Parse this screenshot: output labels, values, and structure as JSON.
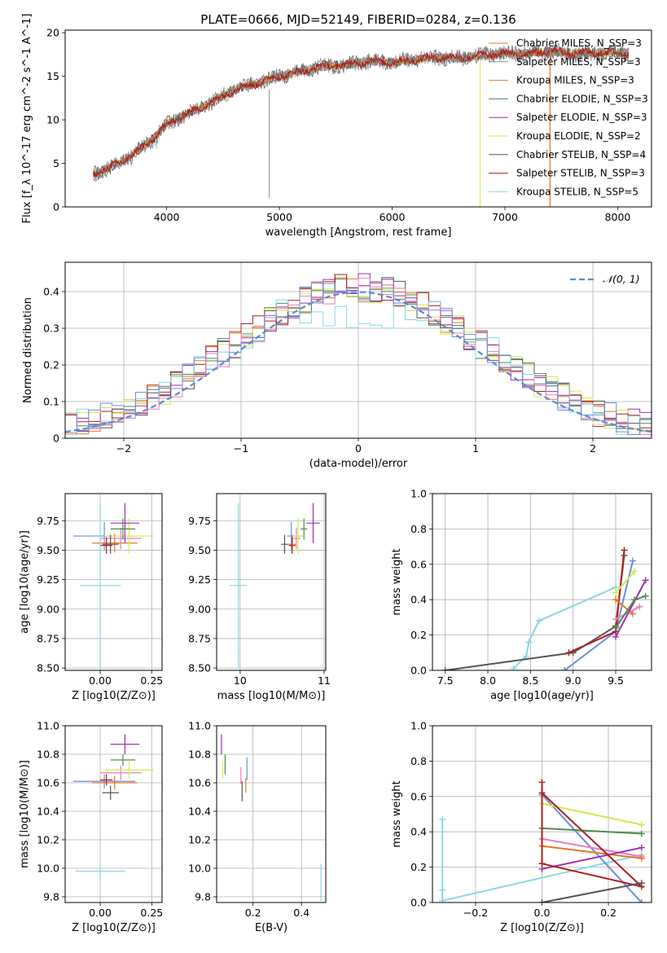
{
  "figure": {
    "title": "PLATE=0666, MJD=52149, FIBERID=0284, z=0.136"
  },
  "model_colors": [
    "#e8742a",
    "#4f8a4f",
    "#9b2fae",
    "#d4ea4a",
    "#555555",
    "#b01e1e",
    "#88d8e0",
    "#e87fbf",
    "#6a8fd8"
  ],
  "chart_data": [
    {
      "id": "spectrum",
      "type": "line",
      "xlabel": "wavelength [Angstrom, rest frame]",
      "ylabel": "Flux [f_λ 10^-17 erg cm^-2 s^-1 A^-1]",
      "xlim": [
        3100,
        8300
      ],
      "ylim": [
        0,
        20.3
      ],
      "xticks": [
        4000,
        5000,
        6000,
        7000,
        8000
      ],
      "yticks": [
        0,
        5,
        10,
        15,
        20
      ],
      "grid": false,
      "legend": "top-right",
      "observed_anchor_wavelengths": [
        3350,
        3500,
        3700,
        3900,
        4000,
        4200,
        4400,
        4600,
        4800,
        5000,
        5200,
        5400,
        5600,
        5800,
        6000,
        6200,
        6400,
        6600,
        6800,
        7000,
        7200,
        7400,
        7600,
        7800,
        8050
      ],
      "observed_anchor_flux": [
        3.8,
        4.5,
        6.0,
        8.0,
        9.5,
        10.8,
        12.0,
        13.5,
        14.2,
        15.0,
        15.6,
        16.2,
        16.3,
        16.8,
        16.6,
        16.9,
        17.2,
        17.1,
        17.4,
        17.6,
        17.6,
        17.9,
        17.6,
        17.7,
        17.7
      ],
      "series": [
        {
          "name": "Chabrier MILES, N_SSP=3",
          "color": "#e8742a"
        },
        {
          "name": "Salpeter MILES, N_SSP=3",
          "color": "#8a8a8a"
        },
        {
          "name": "Kroupa MILES, N_SSP=3",
          "color": "#e8742a"
        },
        {
          "name": "Chabrier ELODIE, N_SSP=3",
          "color": "#4f8a4f"
        },
        {
          "name": "Salpeter ELODIE, N_SSP=3",
          "color": "#9b2fae"
        },
        {
          "name": "Kroupa ELODIE, N_SSP=2",
          "color": "#d4ea4a"
        },
        {
          "name": "Chabrier STELIB, N_SSP=4",
          "color": "#555555"
        },
        {
          "name": "Salpeter STELIB, N_SSP=3",
          "color": "#b01e1e"
        },
        {
          "name": "Kroupa STELIB, N_SSP=5",
          "color": "#88d8e0"
        }
      ]
    },
    {
      "id": "residuals",
      "type": "line",
      "xlabel": "(data-model)/error",
      "ylabel": "Normed distribution",
      "xlim": [
        -2.5,
        2.5
      ],
      "ylim": [
        0,
        0.48
      ],
      "xticks": [
        -2,
        -1,
        0,
        1,
        2
      ],
      "yticks": [
        0.0,
        0.1,
        0.2,
        0.3,
        0.4
      ],
      "grid": true,
      "legend": "top-right",
      "reference_curve": {
        "name": "𝒩(0, 1)",
        "color": "#5b8ad6",
        "style": "dashed"
      },
      "bin_width": 0.1
    },
    {
      "id": "age_vs_Z",
      "type": "scatter",
      "xlabel": "Z [log10(Z/Z⊙)]",
      "ylabel": "age [log10(age/yr)]",
      "xlim": [
        -0.17,
        0.3
      ],
      "ylim": [
        8.48,
        9.98
      ],
      "xticks": [
        0.0,
        0.25
      ],
      "xticklabels": [
        "0.00",
        "0.25"
      ],
      "yticks": [
        8.5,
        8.75,
        9.0,
        9.25,
        9.5,
        9.75
      ],
      "yticklabels": [
        "8.50",
        "8.75",
        "9.00",
        "9.25",
        "9.50",
        "9.75"
      ],
      "grid": true,
      "points": [
        {
          "x": 0.02,
          "y": 9.62,
          "xerr": 0.15,
          "yerr": 0.12,
          "color": "#6a8fd8"
        },
        {
          "x": 0.07,
          "y": 9.56,
          "xerr": 0.11,
          "yerr": 0.08,
          "color": "#e8742a"
        },
        {
          "x": 0.1,
          "y": 9.6,
          "xerr": 0.1,
          "yerr": 0.09,
          "color": "#e87fbf"
        },
        {
          "x": 0.14,
          "y": 9.62,
          "xerr": 0.12,
          "yerr": 0.15,
          "color": "#d4ea4a"
        },
        {
          "x": 0.12,
          "y": 9.73,
          "xerr": 0.07,
          "yerr": 0.17,
          "color": "#9b2fae"
        },
        {
          "x": 0.11,
          "y": 9.68,
          "xerr": 0.06,
          "yerr": 0.09,
          "color": "#4f8a4f"
        },
        {
          "x": 0.05,
          "y": 9.55,
          "xerr": 0.04,
          "yerr": 0.08,
          "color": "#555555"
        },
        {
          "x": 0.03,
          "y": 9.54,
          "xerr": 0.03,
          "yerr": 0.07,
          "color": "#b01e1e"
        },
        {
          "x": 0.0,
          "y": 9.2,
          "xerr": 0.1,
          "yerr": 0.7,
          "color": "#88d8e0"
        }
      ]
    },
    {
      "id": "age_vs_mass",
      "type": "scatter",
      "xlabel": "mass [log10(M/M⊙)]",
      "ylabel": "",
      "xlim": [
        9.72,
        11.02
      ],
      "ylim": [
        8.48,
        9.98
      ],
      "xticks": [
        10,
        11
      ],
      "yticks": [
        8.5,
        8.75,
        9.0,
        9.25,
        9.5,
        9.75
      ],
      "yticklabels": [
        "8.50",
        "8.75",
        "9.00",
        "9.25",
        "9.50",
        "9.75"
      ],
      "grid": true,
      "points": [
        {
          "x": 10.61,
          "y": 9.62,
          "xerr": 0.05,
          "yerr": 0.12,
          "color": "#6a8fd8"
        },
        {
          "x": 10.62,
          "y": 9.55,
          "xerr": 0.05,
          "yerr": 0.08,
          "color": "#e8742a"
        },
        {
          "x": 10.67,
          "y": 9.6,
          "xerr": 0.05,
          "yerr": 0.09,
          "color": "#e87fbf"
        },
        {
          "x": 10.69,
          "y": 9.62,
          "xerr": 0.06,
          "yerr": 0.15,
          "color": "#d4ea4a"
        },
        {
          "x": 10.87,
          "y": 9.73,
          "xerr": 0.08,
          "yerr": 0.17,
          "color": "#9b2fae"
        },
        {
          "x": 10.76,
          "y": 9.68,
          "xerr": 0.04,
          "yerr": 0.09,
          "color": "#4f8a4f"
        },
        {
          "x": 10.53,
          "y": 9.55,
          "xerr": 0.04,
          "yerr": 0.08,
          "color": "#555555"
        },
        {
          "x": 10.62,
          "y": 9.54,
          "xerr": 0.04,
          "yerr": 0.07,
          "color": "#b01e1e"
        },
        {
          "x": 9.98,
          "y": 9.2,
          "xerr": 0.1,
          "yerr": 0.7,
          "color": "#88d8e0"
        }
      ]
    },
    {
      "id": "weight_vs_age",
      "type": "line",
      "xlabel": "age [log10(age/yr)]",
      "ylabel": "mass weight",
      "xlim": [
        7.35,
        9.92
      ],
      "ylim": [
        0,
        1
      ],
      "xticks": [
        7.5,
        8.0,
        8.5,
        9.0,
        9.5
      ],
      "xticklabels": [
        "7.5",
        "8.0",
        "8.5",
        "9.0",
        "9.5"
      ],
      "yticks": [
        0,
        0.2,
        0.4,
        0.6,
        0.8,
        1.0
      ],
      "yticklabels": [
        "0.0",
        "0.2",
        "0.4",
        "0.6",
        "0.8",
        "1.0"
      ],
      "grid": true,
      "series": [
        {
          "color": "#88d8e0",
          "x": [
            8.3,
            8.45,
            8.48,
            8.6,
            9.5
          ],
          "y": [
            0.01,
            0.08,
            0.16,
            0.28,
            0.47
          ]
        },
        {
          "color": "#555555",
          "x": [
            7.5,
            9.0,
            9.5,
            9.6
          ],
          "y": [
            0.0,
            0.1,
            0.25,
            0.65
          ]
        },
        {
          "color": "#6a8fd8",
          "x": [
            8.9,
            9.5,
            9.7
          ],
          "y": [
            0.0,
            0.22,
            0.62
          ]
        },
        {
          "color": "#b01e1e",
          "x": [
            8.95,
            9.5,
            9.6
          ],
          "y": [
            0.1,
            0.22,
            0.68
          ]
        },
        {
          "color": "#e8742a",
          "x": [
            9.5,
            9.7
          ],
          "y": [
            0.4,
            0.32
          ]
        },
        {
          "color": "#d4ea4a",
          "x": [
            9.5,
            9.72
          ],
          "y": [
            0.44,
            0.56
          ]
        },
        {
          "color": "#e87fbf",
          "x": [
            9.5,
            9.78
          ],
          "y": [
            0.29,
            0.36
          ]
        },
        {
          "color": "#9b2fae",
          "x": [
            9.5,
            9.85
          ],
          "y": [
            0.19,
            0.51
          ]
        },
        {
          "color": "#4f8a4f",
          "x": [
            9.5,
            9.72,
            9.85
          ],
          "y": [
            0.24,
            0.4,
            0.42
          ]
        }
      ]
    },
    {
      "id": "mass_vs_Z",
      "type": "scatter",
      "xlabel": "Z [log10(Z/Z⊙)]",
      "ylabel": "mass [log10(M/M⊙)]",
      "xlim": [
        -0.17,
        0.3
      ],
      "ylim": [
        9.76,
        11.0
      ],
      "xticks": [
        0.0,
        0.25
      ],
      "xticklabels": [
        "0.00",
        "0.25"
      ],
      "yticks": [
        9.8,
        10.0,
        10.2,
        10.4,
        10.6,
        10.8,
        11.0
      ],
      "yticklabels": [
        "9.8",
        "10.0",
        "10.2",
        "10.4",
        "10.6",
        "10.8",
        "11.0"
      ],
      "grid": true,
      "points": [
        {
          "x": 0.02,
          "y": 10.61,
          "xerr": 0.15,
          "yerr": 0.05,
          "color": "#6a8fd8"
        },
        {
          "x": 0.07,
          "y": 10.6,
          "xerr": 0.11,
          "yerr": 0.05,
          "color": "#e8742a"
        },
        {
          "x": 0.1,
          "y": 10.67,
          "xerr": 0.1,
          "yerr": 0.05,
          "color": "#e87fbf"
        },
        {
          "x": 0.14,
          "y": 10.69,
          "xerr": 0.12,
          "yerr": 0.06,
          "color": "#d4ea4a"
        },
        {
          "x": 0.12,
          "y": 10.87,
          "xerr": 0.07,
          "yerr": 0.07,
          "color": "#9b2fae"
        },
        {
          "x": 0.11,
          "y": 10.76,
          "xerr": 0.06,
          "yerr": 0.04,
          "color": "#4f8a4f"
        },
        {
          "x": 0.05,
          "y": 10.53,
          "xerr": 0.04,
          "yerr": 0.05,
          "color": "#555555"
        },
        {
          "x": 0.03,
          "y": 10.62,
          "xerr": 0.03,
          "yerr": 0.04,
          "color": "#b01e1e"
        },
        {
          "x": 0.0,
          "y": 9.98,
          "xerr": 0.12,
          "yerr": 0.06,
          "color": "#88d8e0"
        }
      ]
    },
    {
      "id": "mass_vs_ebv",
      "type": "scatter",
      "xlabel": "E(B-V)",
      "ylabel": "",
      "xlim": [
        0.05,
        0.5
      ],
      "ylim": [
        9.76,
        11.0
      ],
      "xticks": [
        0.2,
        0.4
      ],
      "xticklabels": [
        "0.2",
        "0.4"
      ],
      "yticks": [
        9.8,
        10.0,
        10.2,
        10.4,
        10.6,
        10.8,
        11.0
      ],
      "yticklabels": [
        "9.8",
        "10.0",
        "10.2",
        "10.4",
        "10.6",
        "10.8",
        "11.0"
      ],
      "grid": true,
      "points": [
        {
          "x": 0.07,
          "y": 10.87,
          "xerr": 0,
          "yerr": 0.07,
          "color": "#9b2fae"
        },
        {
          "x": 0.085,
          "y": 10.73,
          "xerr": 0,
          "yerr": 0.07,
          "color": "#4f8a4f"
        },
        {
          "x": 0.075,
          "y": 10.69,
          "xerr": 0,
          "yerr": 0.06,
          "color": "#d4ea4a"
        },
        {
          "x": 0.15,
          "y": 10.65,
          "xerr": 0,
          "yerr": 0.06,
          "color": "#e87fbf"
        },
        {
          "x": 0.155,
          "y": 10.54,
          "xerr": 0,
          "yerr": 0.07,
          "color": "#555555"
        },
        {
          "x": 0.17,
          "y": 10.58,
          "xerr": 0,
          "yerr": 0.05,
          "color": "#e8742a"
        },
        {
          "x": 0.175,
          "y": 10.7,
          "xerr": 0,
          "yerr": 0.08,
          "color": "#6a8fd8"
        },
        {
          "x": 0.48,
          "y": 9.9,
          "xerr": 0,
          "yerr": 0.13,
          "color": "#88d8e0"
        }
      ]
    },
    {
      "id": "weight_vs_Z",
      "type": "line",
      "xlabel": "Z [log10(Z/Z⊙)]",
      "ylabel": "mass weight",
      "xlim": [
        -0.33,
        0.33
      ],
      "ylim": [
        0,
        1
      ],
      "xticks": [
        -0.2,
        0.0,
        0.2
      ],
      "xticklabels": [
        "−0.2",
        "0.0",
        "0.2"
      ],
      "yticks": [
        0,
        0.2,
        0.4,
        0.6,
        0.8,
        1.0
      ],
      "yticklabels": [
        "0.0",
        "0.2",
        "0.4",
        "0.6",
        "0.8",
        "1.0"
      ],
      "grid": true,
      "series": [
        {
          "color": "#88d8e0",
          "x": [
            -0.3,
            -0.3,
            -0.3,
            0.3
          ],
          "y": [
            0.47,
            0.07,
            0.01,
            0.27
          ]
        },
        {
          "color": "#6a8fd8",
          "x": [
            0.0,
            0.3
          ],
          "y": [
            0.61,
            0.0
          ]
        },
        {
          "color": "#d4ea4a",
          "x": [
            0.0,
            0.3
          ],
          "y": [
            0.56,
            0.44
          ]
        },
        {
          "color": "#4f8a4f",
          "x": [
            0.0,
            0.3
          ],
          "y": [
            0.42,
            0.39
          ]
        },
        {
          "color": "#e87fbf",
          "x": [
            0.0,
            0.3
          ],
          "y": [
            0.36,
            0.26
          ]
        },
        {
          "color": "#e8742a",
          "x": [
            0.0,
            0.3
          ],
          "y": [
            0.32,
            0.25
          ]
        },
        {
          "color": "#9b2fae",
          "x": [
            0.0,
            0.3
          ],
          "y": [
            0.19,
            0.31
          ]
        },
        {
          "color": "#b01e1e",
          "x": [
            0.0,
            0.0,
            0.3,
            0.0
          ],
          "y": [
            0.68,
            0.22,
            0.09,
            0.62
          ]
        },
        {
          "color": "#555555",
          "x": [
            0.0,
            0.3
          ],
          "y": [
            0.0,
            0.11
          ]
        }
      ]
    }
  ]
}
